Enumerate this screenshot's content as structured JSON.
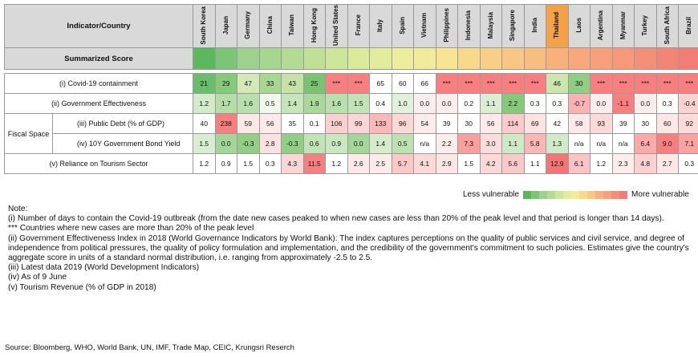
{
  "header": {
    "corner": "Indicator/Country"
  },
  "countries": [
    "South Korea",
    "Japan",
    "Germany",
    "China",
    "Taiwan",
    "Hong Kong",
    "United States",
    "France",
    "Italy",
    "Spain",
    "Vietnam",
    "Philippines",
    "Indonesia",
    "Malaysia",
    "Singapore",
    "India",
    "Thailand",
    "Laos",
    "Argentina",
    "Myanmar",
    "Turkey",
    "South Africa",
    "Brazil"
  ],
  "highlight_country": "Thailand",
  "highlight_color": "#f4a24a",
  "score_row": {
    "label": "Summarized Score",
    "colors": [
      "#5cb85c",
      "#7cc576",
      "#9dd18d",
      "#a7d68f",
      "#b4db93",
      "#bfe095",
      "#cde69a",
      "#dcea9c",
      "#e3ec9c",
      "#ecee9c",
      "#f2ec9a",
      "#f7e593",
      "#f8d98c",
      "#f9cf86",
      "#f9c683",
      "#f9bd80",
      "#f8b17d",
      "#f8a87c",
      "#f7a07b",
      "#f6987a",
      "#f48f78",
      "#f38577",
      "#f27d76"
    ]
  },
  "rows": [
    {
      "label": "(i) Covid-19 containment",
      "values": [
        "21",
        "29",
        "47",
        "33",
        "43",
        "25",
        "***",
        "***",
        "65",
        "60",
        "66",
        "***",
        "***",
        "***",
        "***",
        "***",
        "46",
        "30",
        "***",
        "***",
        "***",
        "***",
        "***"
      ],
      "colors": [
        "#6abd6a",
        "#86c97b",
        "#d4e8b8",
        "#a9d690",
        "#c6e2a6",
        "#79c372",
        "#f87f7f",
        "#f87f7f",
        "#ffffff",
        "#ffffff",
        "#ffffff",
        "#f87f7f",
        "#f87f7f",
        "#f87f7f",
        "#f87f7f",
        "#f87f7f",
        "#cfe5b0",
        "#91cd82",
        "#f87f7f",
        "#f87f7f",
        "#f87f7f",
        "#f87f7f",
        "#f87f7f"
      ]
    },
    {
      "label": "(ii) Government Effectiveness",
      "values": [
        "1.2",
        "1.7",
        "1.6",
        "0.5",
        "1.4",
        "1.9",
        "1.6",
        "1.5",
        "0.4",
        "1.0",
        "0.0",
        "0.0",
        "0.2",
        "1.1",
        "2.2",
        "0.3",
        "0.3",
        "-0.7",
        "0.0",
        "-1.1",
        "0.0",
        "0.3",
        "-0.4"
      ],
      "colors": [
        "#d3ebcb",
        "#b4dda7",
        "#badfae",
        "#f3f8ef",
        "#c5e5bb",
        "#a9d89b",
        "#badfae",
        "#c1e3b6",
        "#fbfdfa",
        "#e1f0db",
        "#fdeeee",
        "#fdeeee",
        "#ffffff",
        "#dbeed3",
        "#86c97b",
        "#fbfdfa",
        "#fbfdfa",
        "#f9b3b3",
        "#fdeeee",
        "#f87f7f",
        "#fdeeee",
        "#fbfdfa",
        "#fbd1d1"
      ]
    },
    {
      "label": "(iii) Public Debt (% of GDP)",
      "values": [
        "40",
        "238",
        "59",
        "56",
        "35",
        "0.1",
        "106",
        "99",
        "133",
        "96",
        "54",
        "39",
        "30",
        "56",
        "114",
        "69",
        "42",
        "58",
        "93",
        "39",
        "30",
        "60",
        "92"
      ],
      "colors": [
        "#ffffff",
        "#f87f7f",
        "#fde8e8",
        "#feeaea",
        "#ffffff",
        "#ffffff",
        "#fbd0d0",
        "#fcd6d6",
        "#fab8b8",
        "#fcd8d8",
        "#feecec",
        "#ffffff",
        "#ffffff",
        "#feeaea",
        "#fbcaca",
        "#fde3e3",
        "#ffffff",
        "#fde9e9",
        "#fcdada",
        "#ffffff",
        "#ffffff",
        "#fde7e7",
        "#fcdbdb"
      ]
    },
    {
      "label": "(iv) 10Y Government Bond Yield",
      "values": [
        "1.5",
        "0.0",
        "-0.3",
        "2.8",
        "-0.3",
        "0.6",
        "0.9",
        "0.0",
        "1.4",
        "0.5",
        "n/a",
        "2.2",
        "7.3",
        "3.0",
        "1.1",
        "5.8",
        "1.3",
        "n/a",
        "n/a",
        "n/a",
        "6.4",
        "9.0",
        "7.1"
      ],
      "colors": [
        "#d8edd1",
        "#a5d699",
        "#93ce87",
        "#fbe2e2",
        "#93ce87",
        "#c1e3b6",
        "#cbe7c0",
        "#a5d699",
        "#d5ebcc",
        "#bde1b2",
        "#ffffff",
        "#fdeeee",
        "#fa9e9e",
        "#fbdcdc",
        "#cfe9c6",
        "#fbb6b6",
        "#d2eac9",
        "#ffffff",
        "#ffffff",
        "#ffffff",
        "#fba9a9",
        "#f87f7f",
        "#faa1a1"
      ]
    },
    {
      "label": "(v) Reliance on Tourism Sector",
      "values": [
        "1.2",
        "0.9",
        "1.5",
        "0.3",
        "4.3",
        "11.5",
        "1.2",
        "2.6",
        "2.5",
        "5.7",
        "4.1",
        "2.9",
        "1.5",
        "4.2",
        "5.6",
        "1.1",
        "12.9",
        "6.1",
        "1.2",
        "2.3",
        "4.8",
        "2.7",
        "0.3"
      ],
      "colors": [
        "#ffffff",
        "#ffffff",
        "#ffffff",
        "#ffffff",
        "#fcd6d6",
        "#f58080",
        "#ffffff",
        "#fde9e9",
        "#fdeaea",
        "#fbc8c8",
        "#fcd9d9",
        "#fde6e6",
        "#ffffff",
        "#fcd8d8",
        "#fbc9c9",
        "#ffffff",
        "#f37575",
        "#fbc3c3",
        "#ffffff",
        "#fdeded",
        "#fcd0d0",
        "#fde8e8",
        "#ffffff"
      ]
    }
  ],
  "fiscal_space_label": "Fiscal Space",
  "legend": {
    "less": "Less vulnerable",
    "more": "More vulnerable",
    "swatches": [
      "#5cb85c",
      "#7cc576",
      "#9dd18d",
      "#b4db93",
      "#cde69a",
      "#e3ec9c",
      "#f2ec9a",
      "#f8d98c",
      "#f9c683",
      "#f8b17d",
      "#f7a07b",
      "#f48f78",
      "#f27d76"
    ]
  },
  "notes": [
    "Note:",
    "(i) Number of days to contain the Covid-19 outbreak (from the date new cases peaked to when new cases are less than 20% of the peak level and that period is longer than 14 days).",
    "*** Countries where new cases are more than 20% of the peak level",
    "(ii) Government Effectiveness Index in 2018 (World Governance Indicators by World Bank): The index captures perceptions on the quality of public services and civil service, and degree of independence from political pressures, the quality of policy formulation and implementation, and the credibility of the government's commitment to such policies. Estimates give the country's aggregate score in units of a standard normal distribution, i.e. ranging from approximately -2.5 to 2.5.",
    "(iii) Latest data 2019 (World Development Indicators)",
    "(iv) As of 9 June",
    "(v) Tourism Revenue (% of GDP in 2018)"
  ],
  "source": "Source: Bloomberg, WHO, World Bank, UN, IMF, Trade Map, CEIC, Krungsri Reserch"
}
